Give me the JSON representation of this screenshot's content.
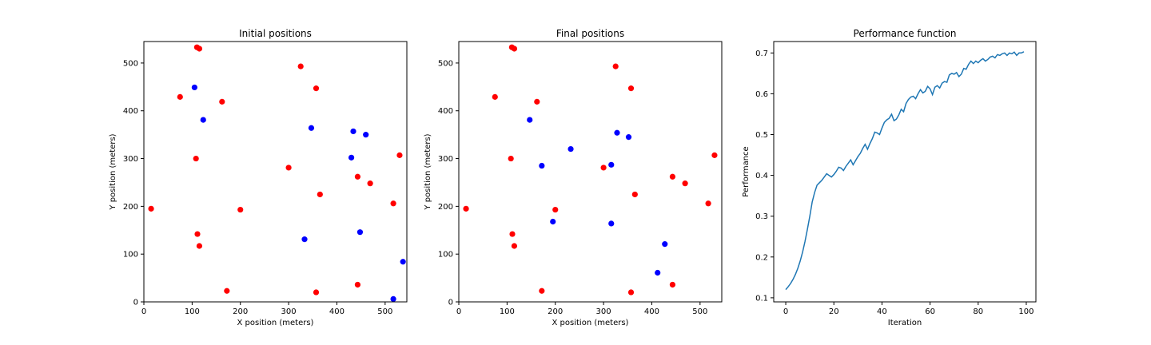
{
  "colors": {
    "red": "#ff0000",
    "blue": "#0000ff",
    "line": "#1f77b4"
  },
  "chart_data": [
    {
      "type": "scatter",
      "title": "Initial positions",
      "xlabel": "X position (meters)",
      "ylabel": "Y position (meters)",
      "xlim": [
        0,
        545
      ],
      "ylim": [
        0,
        545
      ],
      "xticks": [
        0,
        100,
        200,
        300,
        400,
        500
      ],
      "yticks": [
        0,
        100,
        200,
        300,
        400,
        500
      ],
      "grid": false,
      "series": [
        {
          "color": "red",
          "points": [
            [
              110,
              533
            ],
            [
              115,
              530
            ],
            [
              325,
              493
            ],
            [
              357,
              447
            ],
            [
              75,
              429
            ],
            [
              162,
              419
            ],
            [
              300,
              281
            ],
            [
              108,
              300
            ],
            [
              530,
              307
            ],
            [
              443,
              262
            ],
            [
              469,
              248
            ],
            [
              365,
              225
            ],
            [
              517,
              206
            ],
            [
              15,
              195
            ],
            [
              200,
              193
            ],
            [
              111,
              142
            ],
            [
              115,
              117
            ],
            [
              172,
              23
            ],
            [
              357,
              20
            ],
            [
              443,
              36
            ]
          ]
        },
        {
          "color": "blue",
          "points": [
            [
              105,
              449
            ],
            [
              123,
              381
            ],
            [
              347,
              364
            ],
            [
              434,
              357
            ],
            [
              460,
              350
            ],
            [
              430,
              302
            ],
            [
              333,
              131
            ],
            [
              448,
              146
            ],
            [
              537,
              84
            ],
            [
              517,
              6
            ]
          ]
        }
      ]
    },
    {
      "type": "scatter",
      "title": "Final positions",
      "xlabel": "X position (meters)",
      "ylabel": "Y position (meters)",
      "xlim": [
        0,
        545
      ],
      "ylim": [
        0,
        545
      ],
      "xticks": [
        0,
        100,
        200,
        300,
        400,
        500
      ],
      "yticks": [
        0,
        100,
        200,
        300,
        400,
        500
      ],
      "grid": false,
      "series": [
        {
          "color": "red",
          "points": [
            [
              110,
              533
            ],
            [
              115,
              530
            ],
            [
              325,
              493
            ],
            [
              357,
              447
            ],
            [
              75,
              429
            ],
            [
              162,
              419
            ],
            [
              300,
              281
            ],
            [
              108,
              300
            ],
            [
              530,
              307
            ],
            [
              443,
              262
            ],
            [
              469,
              248
            ],
            [
              365,
              225
            ],
            [
              517,
              206
            ],
            [
              15,
              195
            ],
            [
              200,
              193
            ],
            [
              111,
              142
            ],
            [
              115,
              117
            ],
            [
              172,
              23
            ],
            [
              357,
              20
            ],
            [
              443,
              36
            ]
          ]
        },
        {
          "color": "blue",
          "points": [
            [
              147,
              381
            ],
            [
              232,
              320
            ],
            [
              172,
              285
            ],
            [
              316,
              287
            ],
            [
              328,
              354
            ],
            [
              352,
              345
            ],
            [
              195,
              168
            ],
            [
              316,
              164
            ],
            [
              427,
              121
            ],
            [
              412,
              61
            ]
          ]
        }
      ]
    },
    {
      "type": "line",
      "title": "Performance function",
      "xlabel": "Iteration",
      "ylabel": "Performance",
      "xlim": [
        -5,
        104
      ],
      "ylim": [
        0.09,
        0.728
      ],
      "xticks": [
        0,
        20,
        40,
        60,
        80,
        100
      ],
      "yticks": [
        0.1,
        0.2,
        0.3,
        0.4,
        0.5,
        0.6,
        0.7
      ],
      "ytick_labels": [
        "0.1",
        "0.2",
        "0.3",
        "0.4",
        "0.5",
        "0.6",
        "0.7"
      ],
      "grid": false,
      "series": [
        {
          "color": "line",
          "x": [
            0,
            1,
            2,
            3,
            4,
            5,
            6,
            7,
            8,
            9,
            10,
            11,
            12,
            13,
            14,
            15,
            16,
            17,
            18,
            19,
            20,
            21,
            22,
            23,
            24,
            25,
            26,
            27,
            28,
            29,
            30,
            31,
            32,
            33,
            34,
            35,
            36,
            37,
            38,
            39,
            40,
            41,
            42,
            43,
            44,
            45,
            46,
            47,
            48,
            49,
            50,
            51,
            52,
            53,
            54,
            55,
            56,
            57,
            58,
            59,
            60,
            61,
            62,
            63,
            64,
            65,
            66,
            67,
            68,
            69,
            70,
            71,
            72,
            73,
            74,
            75,
            76,
            77,
            78,
            79,
            80,
            81,
            82,
            83,
            84,
            85,
            86,
            87,
            88,
            89,
            90,
            91,
            92,
            93,
            94,
            95,
            96,
            97,
            98,
            99
          ],
          "y": [
            0.12,
            0.127,
            0.135,
            0.145,
            0.157,
            0.172,
            0.19,
            0.212,
            0.238,
            0.268,
            0.3,
            0.335,
            0.358,
            0.376,
            0.382,
            0.388,
            0.396,
            0.404,
            0.4,
            0.396,
            0.402,
            0.41,
            0.42,
            0.418,
            0.412,
            0.422,
            0.43,
            0.438,
            0.426,
            0.436,
            0.446,
            0.454,
            0.466,
            0.476,
            0.464,
            0.478,
            0.49,
            0.506,
            0.504,
            0.5,
            0.516,
            0.53,
            0.536,
            0.54,
            0.55,
            0.534,
            0.538,
            0.548,
            0.562,
            0.556,
            0.576,
            0.586,
            0.592,
            0.594,
            0.588,
            0.6,
            0.61,
            0.602,
            0.606,
            0.618,
            0.612,
            0.598,
            0.616,
            0.62,
            0.614,
            0.626,
            0.63,
            0.628,
            0.646,
            0.65,
            0.648,
            0.652,
            0.642,
            0.648,
            0.662,
            0.66,
            0.672,
            0.68,
            0.674,
            0.68,
            0.676,
            0.682,
            0.686,
            0.68,
            0.684,
            0.69,
            0.692,
            0.688,
            0.696,
            0.694,
            0.698,
            0.7,
            0.694,
            0.7,
            0.698,
            0.702,
            0.694,
            0.7,
            0.7,
            0.703
          ]
        }
      ]
    }
  ]
}
